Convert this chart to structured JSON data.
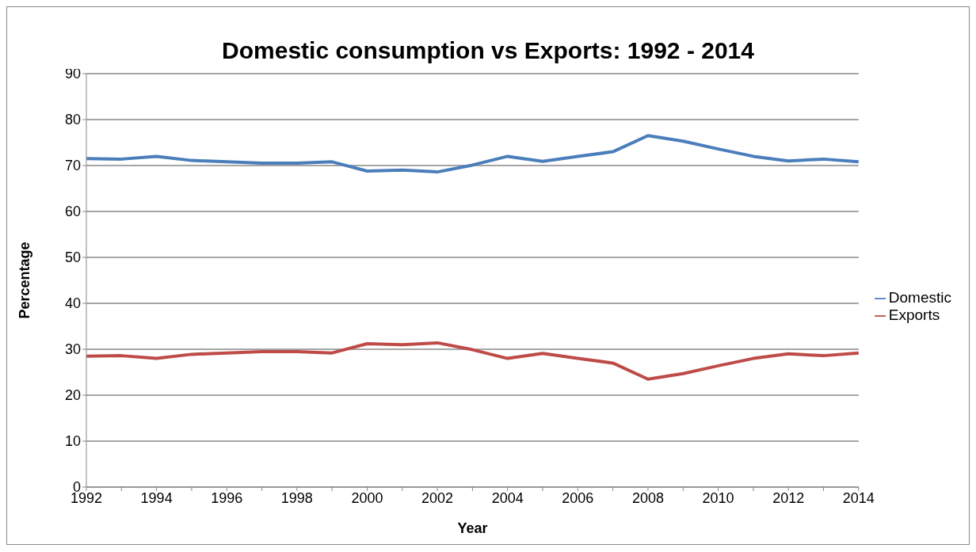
{
  "chart_data": {
    "type": "line",
    "title": "Domestic consumption vs Exports: 1992 - 2014",
    "xlabel": "Year",
    "ylabel": "Percentage",
    "categories": [
      "1992",
      null,
      "1994",
      null,
      "1996",
      null,
      "1998",
      null,
      "2000",
      null,
      "2002",
      null,
      "2004",
      null,
      "2006",
      null,
      "2008",
      null,
      "2010",
      null,
      "2012",
      null,
      "2014"
    ],
    "series": [
      {
        "name": "Domestic",
        "color": "#4a7ebb",
        "values": [
          71.5,
          71.4,
          72,
          71.1,
          70.8,
          70.5,
          70.5,
          70.8,
          68.8,
          69,
          68.6,
          70.1,
          72,
          70.9,
          72,
          73,
          76.5,
          75.3,
          73.6,
          72,
          71,
          71.4,
          70.8
        ]
      },
      {
        "name": "Exports",
        "color": "#be4b48",
        "values": [
          28.5,
          28.6,
          28,
          28.9,
          29.2,
          29.5,
          29.5,
          29.2,
          31.2,
          31,
          31.4,
          29.9,
          28,
          29.1,
          28,
          27,
          23.5,
          24.7,
          26.4,
          28,
          29,
          28.6,
          29.2
        ]
      }
    ],
    "ylim": [
      0,
      90
    ],
    "yticks": [
      0,
      10,
      20,
      30,
      40,
      50,
      60,
      70,
      80,
      90
    ],
    "grid": "y",
    "legend": "right",
    "marker": "none",
    "line_style": "solid"
  }
}
